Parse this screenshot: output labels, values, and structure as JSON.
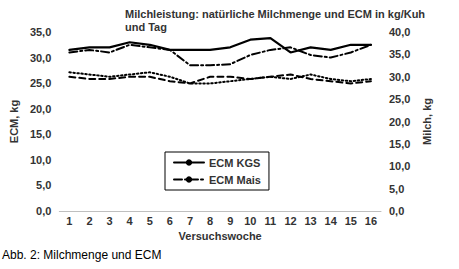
{
  "chart_data": {
    "type": "line",
    "title": "Milchleistung: natürliche Milchmenge und ECM in kg/Kuh und Tag",
    "caption": "Abb. 2: Milchmenge und ECM",
    "x_label": "Versuchswoche",
    "y_label": "ECM, kg",
    "y2_label": "Milch, kg",
    "categories": [
      "1",
      "2",
      "3",
      "4",
      "5",
      "6",
      "7",
      "8",
      "9",
      "10",
      "11",
      "12",
      "13",
      "14",
      "15",
      "16"
    ],
    "ylim": [
      0,
      35
    ],
    "yticks": [
      {
        "value": 0,
        "label": "0,0"
      },
      {
        "value": 5,
        "label": "5,0"
      },
      {
        "value": 10,
        "label": "10,0"
      },
      {
        "value": 15,
        "label": "15,0"
      },
      {
        "value": 20,
        "label": "20,0"
      },
      {
        "value": 25,
        "label": "25,0"
      },
      {
        "value": 30,
        "label": "30,0"
      },
      {
        "value": 35,
        "label": "35,0"
      }
    ],
    "y2lim": [
      0,
      40
    ],
    "y2ticks": [
      {
        "value": 0,
        "label": "0,0"
      },
      {
        "value": 5,
        "label": "5,0"
      },
      {
        "value": 10,
        "label": "10,0"
      },
      {
        "value": 15,
        "label": "15,0"
      },
      {
        "value": 20,
        "label": "20,0"
      },
      {
        "value": 25,
        "label": "25,0"
      },
      {
        "value": 30,
        "label": "30,0"
      },
      {
        "value": 35,
        "label": "35,0"
      },
      {
        "value": 40,
        "label": "40,0"
      }
    ],
    "grid": false,
    "legend": "bottom",
    "series": [
      {
        "name": "ECM KGS",
        "color": "#000000",
        "line_style": "solid",
        "values": [
          31.5,
          32,
          32,
          33,
          32.5,
          31.5,
          31.5,
          31.5,
          32,
          33.5,
          33.8,
          31,
          32,
          31.5,
          32.5,
          32.5
        ]
      },
      {
        "name": "ECM Mais",
        "color": "#000000",
        "line_style": "dashdot",
        "values": [
          31,
          31.5,
          31,
          32.5,
          32,
          31.5,
          28.5,
          28.5,
          28.7,
          30.5,
          31.5,
          32,
          30.5,
          30,
          31,
          32.5
        ]
      },
      {
        "color": "#000000",
        "line_style": "dotted",
        "axis": "y2",
        "values": [
          31,
          30.5,
          30,
          30.5,
          31,
          30,
          28.5,
          28.5,
          29,
          29.5,
          30,
          29.5,
          30.5,
          29.5,
          29,
          29.5
        ]
      },
      {
        "color": "#000000",
        "line_style": "dashed",
        "axis": "y2",
        "values": [
          30,
          29.5,
          29.5,
          30,
          30,
          29,
          28.5,
          30,
          30,
          29.5,
          30,
          30.5,
          29.5,
          29,
          28.5,
          29
        ]
      }
    ]
  }
}
